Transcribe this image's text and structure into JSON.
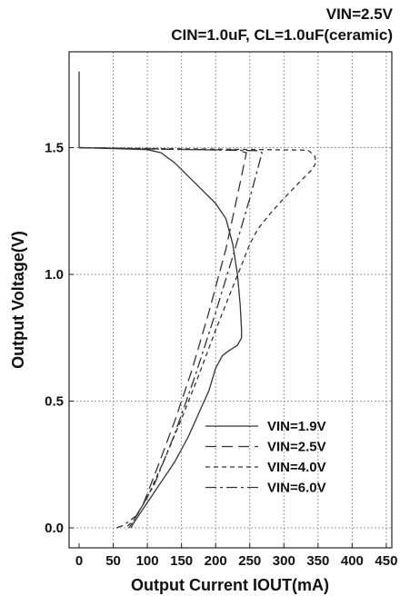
{
  "chart_data": {
    "type": "line",
    "title_lines": [
      "VIN=2.5V",
      "CIN=1.0uF, CL=1.0uF(ceramic)"
    ],
    "xlabel": "Output Current IOUT(mA)",
    "ylabel": "Output Voltage(V)",
    "xlim": [
      0,
      450
    ],
    "ylim": [
      0,
      1.9
    ],
    "x_ticks": [
      "0",
      "50",
      "100",
      "150",
      "200",
      "250",
      "300",
      "350",
      "400",
      "450"
    ],
    "x_tick_values": [
      0,
      50,
      100,
      150,
      200,
      250,
      300,
      350,
      400,
      450
    ],
    "y_ticks": [
      "0.0",
      "0.5",
      "1.0",
      "1.5"
    ],
    "y_tick_values": [
      0.0,
      0.5,
      1.0,
      1.5
    ],
    "grid": true,
    "legend_position": "lower-right",
    "series": [
      {
        "name": "VIN=1.9V",
        "color": "#333333",
        "dash": "",
        "x": [
          0,
          0,
          0,
          40,
          100,
          120,
          140,
          170,
          200,
          215,
          225,
          232,
          236,
          238,
          238,
          232,
          220,
          210,
          200,
          190,
          175,
          160,
          150,
          140,
          125,
          110,
          100,
          90,
          80,
          76
        ],
        "y": [
          1.8,
          1.55,
          1.5,
          1.497,
          1.492,
          1.48,
          1.44,
          1.36,
          1.28,
          1.22,
          1.12,
          1.0,
          0.88,
          0.78,
          0.75,
          0.72,
          0.7,
          0.68,
          0.63,
          0.54,
          0.45,
          0.36,
          0.31,
          0.26,
          0.2,
          0.14,
          0.1,
          0.06,
          0.02,
          0.0
        ]
      },
      {
        "name": "VIN=2.5V",
        "color": "#333333",
        "dash": "12,6",
        "x": [
          0,
          60,
          120,
          230,
          245,
          235,
          215,
          190,
          165,
          140,
          115,
          95,
          78,
          73
        ],
        "y": [
          1.5,
          1.497,
          1.494,
          1.491,
          1.48,
          1.35,
          1.1,
          0.85,
          0.62,
          0.42,
          0.24,
          0.1,
          0.02,
          0.0
        ]
      },
      {
        "name": "VIN=4.0V",
        "color": "#333333",
        "dash": "5,4",
        "x": [
          0,
          120,
          250,
          335,
          345,
          347,
          340,
          325,
          300,
          280,
          262,
          250,
          240,
          225,
          200,
          175,
          150,
          125,
          100,
          80,
          68
        ],
        "y": [
          1.5,
          1.496,
          1.493,
          1.49,
          1.47,
          1.44,
          1.41,
          1.37,
          1.3,
          1.24,
          1.18,
          1.12,
          1.05,
          0.95,
          0.78,
          0.6,
          0.43,
          0.27,
          0.12,
          0.03,
          0.0
        ]
      },
      {
        "name": "VIN=6.0V",
        "color": "#333333",
        "dash": "12,4,3,4",
        "x": [
          0,
          150,
          260,
          268,
          265,
          250,
          225,
          200,
          170,
          140,
          110,
          85,
          65,
          55
        ],
        "y": [
          1.5,
          1.493,
          1.488,
          1.48,
          1.45,
          1.3,
          1.07,
          0.85,
          0.6,
          0.37,
          0.17,
          0.05,
          0.01,
          0.0
        ]
      }
    ]
  }
}
